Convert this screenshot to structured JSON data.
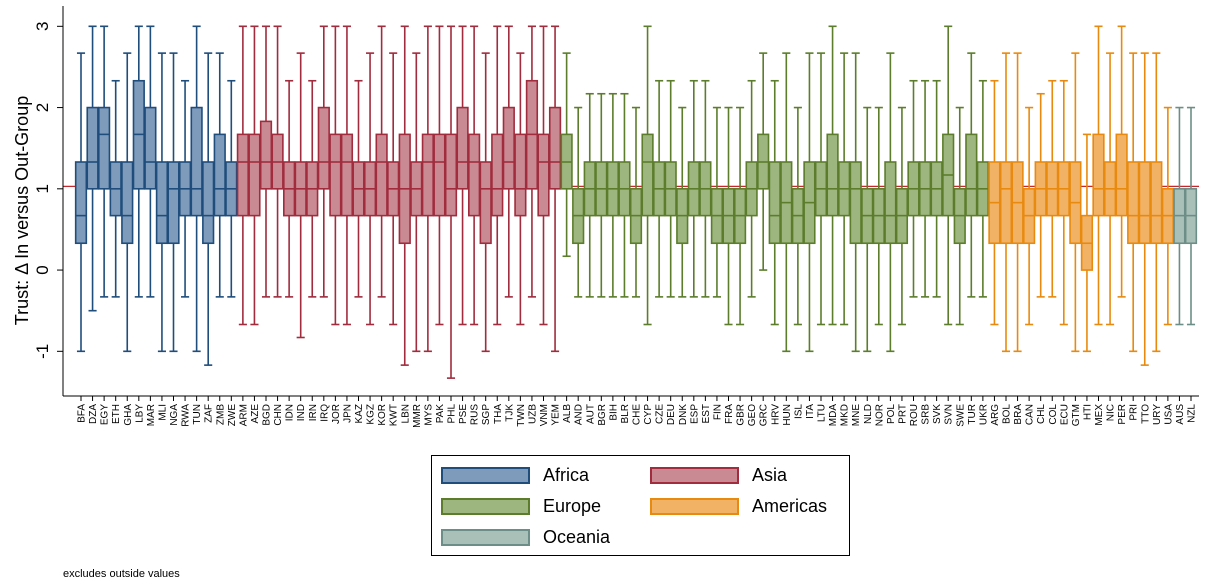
{
  "chart_data": {
    "type": "boxplot",
    "ylabel": "Trust: Δ In versus Out-Group",
    "ylim": [
      -1.55,
      3.25
    ],
    "yticks": [
      -1,
      0,
      1,
      2,
      3
    ],
    "reference_line": 1.03,
    "note": "excludes outside values",
    "groups": [
      {
        "name": "Africa",
        "fill": "#7f9bbb",
        "stroke": "#1f4d7c"
      },
      {
        "name": "Asia",
        "fill": "#c98a94",
        "stroke": "#a02c3d"
      },
      {
        "name": "Europe",
        "fill": "#9db67f",
        "stroke": "#5c7d2c"
      },
      {
        "name": "Americas",
        "fill": "#f2b266",
        "stroke": "#e88a0f"
      },
      {
        "name": "Oceania",
        "fill": "#a9c0b8",
        "stroke": "#6d8e86"
      }
    ],
    "boxes": [
      {
        "label": "BFA",
        "group": 0,
        "lw": -1,
        "q1": 0.33,
        "med": 0.67,
        "q3": 1.33,
        "uw": 2.67
      },
      {
        "label": "DZA",
        "group": 0,
        "lw": -0.5,
        "q1": 1,
        "med": 1.33,
        "q3": 2,
        "uw": 3
      },
      {
        "label": "EGY",
        "group": 0,
        "lw": -0.33,
        "q1": 1,
        "med": 1.67,
        "q3": 2,
        "uw": 3
      },
      {
        "label": "ETH",
        "group": 0,
        "lw": -0.33,
        "q1": 0.67,
        "med": 1,
        "q3": 1.33,
        "uw": 2.33
      },
      {
        "label": "GHA",
        "group": 0,
        "lw": -1,
        "q1": 0.33,
        "med": 0.67,
        "q3": 1.33,
        "uw": 2.67
      },
      {
        "label": "LBY",
        "group": 0,
        "lw": -0.33,
        "q1": 1,
        "med": 1.67,
        "q3": 2.33,
        "uw": 3
      },
      {
        "label": "MAR",
        "group": 0,
        "lw": -0.33,
        "q1": 1,
        "med": 1.33,
        "q3": 2,
        "uw": 3
      },
      {
        "label": "MLI",
        "group": 0,
        "lw": -1,
        "q1": 0.33,
        "med": 0.67,
        "q3": 1.33,
        "uw": 2.67
      },
      {
        "label": "NGA",
        "group": 0,
        "lw": -1,
        "q1": 0.33,
        "med": 1,
        "q3": 1.33,
        "uw": 2.67
      },
      {
        "label": "RWA",
        "group": 0,
        "lw": -0.33,
        "q1": 0.67,
        "med": 1,
        "q3": 1.33,
        "uw": 2.33
      },
      {
        "label": "TUN",
        "group": 0,
        "lw": -1,
        "q1": 0.67,
        "med": 1,
        "q3": 2,
        "uw": 3
      },
      {
        "label": "ZAF",
        "group": 0,
        "lw": -1.17,
        "q1": 0.33,
        "med": 0.67,
        "q3": 1.33,
        "uw": 2.67
      },
      {
        "label": "ZMB",
        "group": 0,
        "lw": -0.33,
        "q1": 0.67,
        "med": 1,
        "q3": 1.67,
        "uw": 2.67
      },
      {
        "label": "ZWE",
        "group": 0,
        "lw": -0.33,
        "q1": 0.67,
        "med": 1,
        "q3": 1.33,
        "uw": 2.33
      },
      {
        "label": "ARM",
        "group": 1,
        "lw": -0.67,
        "q1": 0.67,
        "med": 1.33,
        "q3": 1.67,
        "uw": 3
      },
      {
        "label": "AZE",
        "group": 1,
        "lw": -0.67,
        "q1": 0.67,
        "med": 1.33,
        "q3": 1.67,
        "uw": 3
      },
      {
        "label": "BGD",
        "group": 1,
        "lw": -0.33,
        "q1": 1,
        "med": 1.33,
        "q3": 1.83,
        "uw": 3
      },
      {
        "label": "CHN",
        "group": 1,
        "lw": -0.33,
        "q1": 1,
        "med": 1.33,
        "q3": 1.67,
        "uw": 3
      },
      {
        "label": "IDN",
        "group": 1,
        "lw": -0.33,
        "q1": 0.67,
        "med": 1,
        "q3": 1.33,
        "uw": 2.33
      },
      {
        "label": "IND",
        "group": 1,
        "lw": -0.83,
        "q1": 0.67,
        "med": 1,
        "q3": 1.33,
        "uw": 2.67
      },
      {
        "label": "IRN",
        "group": 1,
        "lw": -0.33,
        "q1": 0.67,
        "med": 1,
        "q3": 1.33,
        "uw": 2.33
      },
      {
        "label": "IRQ",
        "group": 1,
        "lw": -0.33,
        "q1": 1,
        "med": 1.33,
        "q3": 2,
        "uw": 3
      },
      {
        "label": "JOR",
        "group": 1,
        "lw": -0.67,
        "q1": 0.67,
        "med": 1.33,
        "q3": 1.67,
        "uw": 3
      },
      {
        "label": "JPN",
        "group": 1,
        "lw": -0.67,
        "q1": 0.67,
        "med": 1.33,
        "q3": 1.67,
        "uw": 3
      },
      {
        "label": "KAZ",
        "group": 1,
        "lw": -0.33,
        "q1": 0.67,
        "med": 1,
        "q3": 1.33,
        "uw": 2.33
      },
      {
        "label": "KGZ",
        "group": 1,
        "lw": -0.67,
        "q1": 0.67,
        "med": 1,
        "q3": 1.33,
        "uw": 2.67
      },
      {
        "label": "KOR",
        "group": 1,
        "lw": -0.33,
        "q1": 0.67,
        "med": 1.33,
        "q3": 1.67,
        "uw": 3
      },
      {
        "label": "KWT",
        "group": 1,
        "lw": -0.67,
        "q1": 0.67,
        "med": 1,
        "q3": 1.33,
        "uw": 2.67
      },
      {
        "label": "LBN",
        "group": 1,
        "lw": -1.17,
        "q1": 0.33,
        "med": 1,
        "q3": 1.67,
        "uw": 3
      },
      {
        "label": "MMR",
        "group": 1,
        "lw": -1,
        "q1": 0.67,
        "med": 1,
        "q3": 1.33,
        "uw": 2.67
      },
      {
        "label": "MYS",
        "group": 1,
        "lw": -1,
        "q1": 0.67,
        "med": 1.33,
        "q3": 1.67,
        "uw": 3
      },
      {
        "label": "PAK",
        "group": 1,
        "lw": -0.67,
        "q1": 0.67,
        "med": 1.33,
        "q3": 1.67,
        "uw": 3
      },
      {
        "label": "PHL",
        "group": 1,
        "lw": -1.33,
        "q1": 0.67,
        "med": 1,
        "q3": 1.67,
        "uw": 3
      },
      {
        "label": "PSE",
        "group": 1,
        "lw": -0.67,
        "q1": 1,
        "med": 1.33,
        "q3": 2,
        "uw": 3
      },
      {
        "label": "RUS",
        "group": 1,
        "lw": -0.67,
        "q1": 0.67,
        "med": 1.33,
        "q3": 1.67,
        "uw": 3
      },
      {
        "label": "SGP",
        "group": 1,
        "lw": -1,
        "q1": 0.33,
        "med": 1,
        "q3": 1.33,
        "uw": 2.67
      },
      {
        "label": "THA",
        "group": 1,
        "lw": -0.67,
        "q1": 0.67,
        "med": 1,
        "q3": 1.67,
        "uw": 3
      },
      {
        "label": "TJK",
        "group": 1,
        "lw": -0.33,
        "q1": 1,
        "med": 1.33,
        "q3": 2,
        "uw": 3
      },
      {
        "label": "TWN",
        "group": 1,
        "lw": -0.67,
        "q1": 0.67,
        "med": 1,
        "q3": 1.67,
        "uw": 2.67
      },
      {
        "label": "UZB",
        "group": 1,
        "lw": -0.33,
        "q1": 1,
        "med": 1.67,
        "q3": 2.33,
        "uw": 3
      },
      {
        "label": "VNM",
        "group": 1,
        "lw": -0.67,
        "q1": 0.67,
        "med": 1.33,
        "q3": 1.67,
        "uw": 3
      },
      {
        "label": "YEM",
        "group": 1,
        "lw": -1,
        "q1": 1,
        "med": 1.33,
        "q3": 2,
        "uw": 3
      },
      {
        "label": "ALB",
        "group": 2,
        "lw": 0.17,
        "q1": 1,
        "med": 1.33,
        "q3": 1.67,
        "uw": 2.67
      },
      {
        "label": "AND",
        "group": 2,
        "lw": -0.33,
        "q1": 0.33,
        "med": 0.67,
        "q3": 1,
        "uw": 2
      },
      {
        "label": "AUT",
        "group": 2,
        "lw": -0.33,
        "q1": 0.67,
        "med": 1,
        "q3": 1.33,
        "uw": 2.17
      },
      {
        "label": "BGR",
        "group": 2,
        "lw": -0.33,
        "q1": 0.67,
        "med": 1,
        "q3": 1.33,
        "uw": 2.17
      },
      {
        "label": "BIH",
        "group": 2,
        "lw": -0.33,
        "q1": 0.67,
        "med": 1,
        "q3": 1.33,
        "uw": 2.17
      },
      {
        "label": "BLR",
        "group": 2,
        "lw": -0.33,
        "q1": 0.67,
        "med": 1,
        "q3": 1.33,
        "uw": 2.17
      },
      {
        "label": "CHE",
        "group": 2,
        "lw": -0.33,
        "q1": 0.33,
        "med": 0.67,
        "q3": 1,
        "uw": 2
      },
      {
        "label": "CYP",
        "group": 2,
        "lw": -0.67,
        "q1": 0.67,
        "med": 1.33,
        "q3": 1.67,
        "uw": 3
      },
      {
        "label": "CZE",
        "group": 2,
        "lw": -0.33,
        "q1": 0.67,
        "med": 1,
        "q3": 1.33,
        "uw": 2.33
      },
      {
        "label": "DEU",
        "group": 2,
        "lw": -0.33,
        "q1": 0.67,
        "med": 1,
        "q3": 1.33,
        "uw": 2.33
      },
      {
        "label": "DNK",
        "group": 2,
        "lw": -0.33,
        "q1": 0.33,
        "med": 0.67,
        "q3": 1,
        "uw": 2
      },
      {
        "label": "ESP",
        "group": 2,
        "lw": -0.33,
        "q1": 0.67,
        "med": 1,
        "q3": 1.33,
        "uw": 2.33
      },
      {
        "label": "EST",
        "group": 2,
        "lw": -0.33,
        "q1": 0.67,
        "med": 1,
        "q3": 1.33,
        "uw": 2.33
      },
      {
        "label": "FIN",
        "group": 2,
        "lw": -0.33,
        "q1": 0.33,
        "med": 0.67,
        "q3": 1,
        "uw": 2
      },
      {
        "label": "FRA",
        "group": 2,
        "lw": -0.67,
        "q1": 0.33,
        "med": 0.67,
        "q3": 1,
        "uw": 2
      },
      {
        "label": "GBR",
        "group": 2,
        "lw": -0.67,
        "q1": 0.33,
        "med": 0.67,
        "q3": 1,
        "uw": 2
      },
      {
        "label": "GEO",
        "group": 2,
        "lw": -0.33,
        "q1": 0.67,
        "med": 1,
        "q3": 1.33,
        "uw": 2.33
      },
      {
        "label": "GRC",
        "group": 2,
        "lw": 0,
        "q1": 1,
        "med": 1.33,
        "q3": 1.67,
        "uw": 2.67
      },
      {
        "label": "HRV",
        "group": 2,
        "lw": -0.67,
        "q1": 0.33,
        "med": 0.67,
        "q3": 1.33,
        "uw": 2.33
      },
      {
        "label": "HUN",
        "group": 2,
        "lw": -1,
        "q1": 0.33,
        "med": 0.83,
        "q3": 1.33,
        "uw": 2.67
      },
      {
        "label": "ISL",
        "group": 2,
        "lw": -0.67,
        "q1": 0.33,
        "med": 0.67,
        "q3": 1,
        "uw": 2
      },
      {
        "label": "ITA",
        "group": 2,
        "lw": -1,
        "q1": 0.33,
        "med": 0.83,
        "q3": 1.33,
        "uw": 2.67
      },
      {
        "label": "LTU",
        "group": 2,
        "lw": -0.67,
        "q1": 0.67,
        "med": 1,
        "q3": 1.33,
        "uw": 2.67
      },
      {
        "label": "MDA",
        "group": 2,
        "lw": -0.67,
        "q1": 0.67,
        "med": 1,
        "q3": 1.67,
        "uw": 3
      },
      {
        "label": "MKD",
        "group": 2,
        "lw": -0.67,
        "q1": 0.67,
        "med": 1,
        "q3": 1.33,
        "uw": 2.67
      },
      {
        "label": "MNE",
        "group": 2,
        "lw": -1,
        "q1": 0.33,
        "med": 1,
        "q3": 1.33,
        "uw": 2.67
      },
      {
        "label": "NLD",
        "group": 2,
        "lw": -1,
        "q1": 0.33,
        "med": 0.67,
        "q3": 1,
        "uw": 2
      },
      {
        "label": "NOR",
        "group": 2,
        "lw": -0.67,
        "q1": 0.33,
        "med": 0.67,
        "q3": 1,
        "uw": 2
      },
      {
        "label": "POL",
        "group": 2,
        "lw": -1,
        "q1": 0.33,
        "med": 0.67,
        "q3": 1.33,
        "uw": 2.67
      },
      {
        "label": "PRT",
        "group": 2,
        "lw": -0.67,
        "q1": 0.33,
        "med": 0.67,
        "q3": 1,
        "uw": 2
      },
      {
        "label": "ROU",
        "group": 2,
        "lw": -0.33,
        "q1": 0.67,
        "med": 1,
        "q3": 1.33,
        "uw": 2.33
      },
      {
        "label": "SRB",
        "group": 2,
        "lw": -0.33,
        "q1": 0.67,
        "med": 1,
        "q3": 1.33,
        "uw": 2.33
      },
      {
        "label": "SVK",
        "group": 2,
        "lw": -0.33,
        "q1": 0.67,
        "med": 1,
        "q3": 1.33,
        "uw": 2.33
      },
      {
        "label": "SVN",
        "group": 2,
        "lw": -0.67,
        "q1": 0.67,
        "med": 1.17,
        "q3": 1.67,
        "uw": 3
      },
      {
        "label": "SWE",
        "group": 2,
        "lw": -0.67,
        "q1": 0.33,
        "med": 0.67,
        "q3": 1,
        "uw": 2
      },
      {
        "label": "TUR",
        "group": 2,
        "lw": -0.33,
        "q1": 0.67,
        "med": 1,
        "q3": 1.67,
        "uw": 2.67
      },
      {
        "label": "UKR",
        "group": 2,
        "lw": -0.33,
        "q1": 0.67,
        "med": 1,
        "q3": 1.33,
        "uw": 2.33
      },
      {
        "label": "ARG",
        "group": 3,
        "lw": -0.67,
        "q1": 0.33,
        "med": 0.83,
        "q3": 1.33,
        "uw": 2.33
      },
      {
        "label": "BOL",
        "group": 3,
        "lw": -1,
        "q1": 0.33,
        "med": 1,
        "q3": 1.33,
        "uw": 2.67
      },
      {
        "label": "BRA",
        "group": 3,
        "lw": -1,
        "q1": 0.33,
        "med": 0.83,
        "q3": 1.33,
        "uw": 2.67
      },
      {
        "label": "CAN",
        "group": 3,
        "lw": -0.67,
        "q1": 0.33,
        "med": 0.67,
        "q3": 1,
        "uw": 2
      },
      {
        "label": "CHL",
        "group": 3,
        "lw": -0.33,
        "q1": 0.67,
        "med": 1,
        "q3": 1.33,
        "uw": 2.17
      },
      {
        "label": "COL",
        "group": 3,
        "lw": -0.33,
        "q1": 0.67,
        "med": 1,
        "q3": 1.33,
        "uw": 2.33
      },
      {
        "label": "ECU",
        "group": 3,
        "lw": -0.67,
        "q1": 0.67,
        "med": 1,
        "q3": 1.33,
        "uw": 2.33
      },
      {
        "label": "GTM",
        "group": 3,
        "lw": -1,
        "q1": 0.33,
        "med": 0.83,
        "q3": 1.33,
        "uw": 2.67
      },
      {
        "label": "HTI",
        "group": 3,
        "lw": -1,
        "q1": 0,
        "med": 0.33,
        "q3": 0.67,
        "uw": 1.67
      },
      {
        "label": "MEX",
        "group": 3,
        "lw": -0.67,
        "q1": 0.67,
        "med": 1,
        "q3": 1.67,
        "uw": 3
      },
      {
        "label": "NIC",
        "group": 3,
        "lw": -0.67,
        "q1": 0.67,
        "med": 1,
        "q3": 1.33,
        "uw": 2.67
      },
      {
        "label": "PER",
        "group": 3,
        "lw": -0.33,
        "q1": 0.67,
        "med": 1,
        "q3": 1.67,
        "uw": 3
      },
      {
        "label": "PRI",
        "group": 3,
        "lw": -1,
        "q1": 0.33,
        "med": 0.67,
        "q3": 1.33,
        "uw": 2.67
      },
      {
        "label": "TTO",
        "group": 3,
        "lw": -1.17,
        "q1": 0.33,
        "med": 0.67,
        "q3": 1.33,
        "uw": 2.67
      },
      {
        "label": "URY",
        "group": 3,
        "lw": -1,
        "q1": 0.33,
        "med": 0.67,
        "q3": 1.33,
        "uw": 2.67
      },
      {
        "label": "USA",
        "group": 3,
        "lw": -0.67,
        "q1": 0.33,
        "med": 0.67,
        "q3": 1,
        "uw": 2
      },
      {
        "label": "AUS",
        "group": 4,
        "lw": -0.67,
        "q1": 0.33,
        "med": 0.67,
        "q3": 1,
        "uw": 2
      },
      {
        "label": "NZL",
        "group": 4,
        "lw": -0.67,
        "q1": 0.33,
        "med": 0.67,
        "q3": 1,
        "uw": 2
      }
    ]
  }
}
